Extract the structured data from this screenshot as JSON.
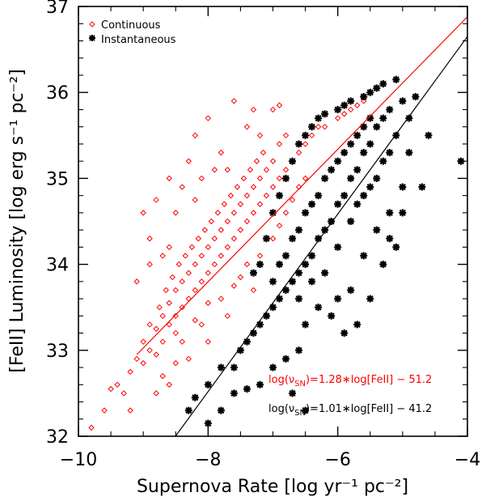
{
  "chart_data": {
    "type": "scatter",
    "title": "",
    "xlabel": "Supernova Rate [log yr⁻¹ pc⁻²]",
    "ylabel": "[FeII] Luminosity [log erg s⁻¹ pc⁻²]",
    "xlim": [
      -10,
      -4
    ],
    "ylim": [
      32,
      37
    ],
    "xticks": [
      -10,
      -8,
      -6,
      -4
    ],
    "xtick_labels": [
      "−10",
      "−8",
      "−6",
      "−4"
    ],
    "yticks": [
      32,
      33,
      34,
      35,
      36,
      37
    ],
    "ytick_labels": [
      "32",
      "33",
      "34",
      "35",
      "36",
      "37"
    ],
    "grid": false,
    "legend_position": "top-left",
    "series": [
      {
        "name": "Continuous",
        "marker": "diamond",
        "color": "#ff0000",
        "fit": {
          "x": [
            -9.1,
            -4.0
          ],
          "y": [
            32.95,
            36.88
          ]
        },
        "equation_prefix": "log(ν",
        "equation_sub": "SN",
        "equation_suffix": ")=1.28∗log[FeII] − 51.2",
        "points": [
          [
            -9.8,
            32.1
          ],
          [
            -9.6,
            32.3
          ],
          [
            -9.5,
            32.55
          ],
          [
            -9.3,
            32.5
          ],
          [
            -9.2,
            32.75
          ],
          [
            -9.1,
            32.9
          ],
          [
            -9.0,
            32.85
          ],
          [
            -9.0,
            33.1
          ],
          [
            -8.9,
            33.0
          ],
          [
            -8.9,
            33.3
          ],
          [
            -8.8,
            32.95
          ],
          [
            -8.8,
            33.25
          ],
          [
            -8.75,
            33.5
          ],
          [
            -8.7,
            33.1
          ],
          [
            -8.7,
            33.4
          ],
          [
            -8.65,
            33.7
          ],
          [
            -8.6,
            33.3
          ],
          [
            -8.6,
            33.55
          ],
          [
            -8.55,
            33.85
          ],
          [
            -8.5,
            33.4
          ],
          [
            -8.5,
            33.7
          ],
          [
            -8.45,
            34.0
          ],
          [
            -8.4,
            33.5
          ],
          [
            -8.4,
            33.8
          ],
          [
            -8.35,
            34.1
          ],
          [
            -8.3,
            33.6
          ],
          [
            -8.3,
            33.9
          ],
          [
            -8.25,
            34.2
          ],
          [
            -8.2,
            33.7
          ],
          [
            -8.2,
            34.0
          ],
          [
            -8.15,
            34.3
          ],
          [
            -8.1,
            33.8
          ],
          [
            -8.1,
            34.1
          ],
          [
            -8.05,
            34.4
          ],
          [
            -8.0,
            33.9
          ],
          [
            -8.0,
            34.2
          ],
          [
            -7.95,
            34.5
          ],
          [
            -7.9,
            34.0
          ],
          [
            -7.9,
            34.3
          ],
          [
            -7.85,
            34.6
          ],
          [
            -7.8,
            34.1
          ],
          [
            -7.8,
            34.4
          ],
          [
            -7.75,
            34.7
          ],
          [
            -7.7,
            34.2
          ],
          [
            -7.7,
            34.5
          ],
          [
            -7.65,
            34.8
          ],
          [
            -7.6,
            34.3
          ],
          [
            -7.6,
            34.6
          ],
          [
            -7.55,
            34.9
          ],
          [
            -7.5,
            34.4
          ],
          [
            -7.5,
            34.7
          ],
          [
            -7.45,
            35.0
          ],
          [
            -7.4,
            34.5
          ],
          [
            -7.4,
            34.8
          ],
          [
            -7.35,
            35.1
          ],
          [
            -7.3,
            34.6
          ],
          [
            -7.3,
            34.9
          ],
          [
            -7.25,
            35.2
          ],
          [
            -7.2,
            34.7
          ],
          [
            -7.2,
            35.0
          ],
          [
            -7.15,
            35.3
          ],
          [
            -7.1,
            34.8
          ],
          [
            -7.1,
            35.1
          ],
          [
            -7.0,
            34.9
          ],
          [
            -7.0,
            35.2
          ],
          [
            -6.9,
            35.0
          ],
          [
            -6.9,
            35.4
          ],
          [
            -6.8,
            35.1
          ],
          [
            -6.8,
            35.5
          ],
          [
            -6.7,
            35.2
          ],
          [
            -6.6,
            35.3
          ],
          [
            -6.5,
            35.4
          ],
          [
            -6.4,
            35.5
          ],
          [
            -6.3,
            35.6
          ],
          [
            -6.2,
            35.6
          ],
          [
            -6.0,
            35.7
          ],
          [
            -5.9,
            35.75
          ],
          [
            -5.8,
            35.8
          ],
          [
            -5.7,
            35.85
          ],
          [
            -5.6,
            35.9
          ],
          [
            -8.2,
            35.5
          ],
          [
            -8.0,
            35.7
          ],
          [
            -7.8,
            35.3
          ],
          [
            -7.6,
            35.9
          ],
          [
            -7.4,
            35.6
          ],
          [
            -7.3,
            35.8
          ],
          [
            -7.0,
            35.8
          ],
          [
            -6.9,
            35.85
          ],
          [
            -7.2,
            35.5
          ],
          [
            -7.7,
            35.1
          ],
          [
            -8.6,
            35.0
          ],
          [
            -8.8,
            34.75
          ],
          [
            -8.5,
            34.6
          ],
          [
            -9.0,
            34.6
          ],
          [
            -8.9,
            34.3
          ],
          [
            -8.4,
            34.9
          ],
          [
            -8.3,
            35.2
          ],
          [
            -8.1,
            35.0
          ],
          [
            -7.9,
            35.1
          ],
          [
            -8.2,
            34.75
          ],
          [
            -8.9,
            34.0
          ],
          [
            -9.1,
            33.8
          ],
          [
            -8.7,
            34.1
          ],
          [
            -8.6,
            34.2
          ],
          [
            -8.5,
            33.2
          ],
          [
            -8.4,
            33.1
          ],
          [
            -8.2,
            33.35
          ],
          [
            -8.1,
            33.3
          ],
          [
            -8.0,
            33.55
          ],
          [
            -7.8,
            33.6
          ],
          [
            -7.6,
            33.75
          ],
          [
            -7.5,
            33.85
          ],
          [
            -7.4,
            34.0
          ],
          [
            -7.2,
            34.1
          ],
          [
            -7.0,
            34.3
          ],
          [
            -6.9,
            34.45
          ],
          [
            -6.8,
            34.6
          ],
          [
            -6.7,
            34.75
          ],
          [
            -6.6,
            34.9
          ],
          [
            -6.5,
            35.0
          ],
          [
            -8.7,
            32.7
          ],
          [
            -8.5,
            32.85
          ],
          [
            -8.3,
            32.9
          ],
          [
            -8.6,
            32.6
          ],
          [
            -9.4,
            32.6
          ],
          [
            -9.2,
            32.3
          ],
          [
            -8.8,
            32.5
          ],
          [
            -8.0,
            33.1
          ],
          [
            -7.7,
            33.4
          ],
          [
            -7.3,
            33.7
          ]
        ]
      },
      {
        "name": "Instantaneous",
        "marker": "asterisk",
        "color": "#000000",
        "fit": {
          "x": [
            -8.6,
            -4.0
          ],
          "y": [
            31.9,
            36.65
          ]
        },
        "equation_prefix": "log(ν",
        "equation_sub": "SN",
        "equation_suffix": ")=1.01∗log[FeII] − 41.2",
        "points": [
          [
            -8.3,
            32.3
          ],
          [
            -8.2,
            32.45
          ],
          [
            -8.0,
            32.6
          ],
          [
            -7.8,
            32.8
          ],
          [
            -7.6,
            32.8
          ],
          [
            -7.5,
            33.0
          ],
          [
            -7.4,
            33.1
          ],
          [
            -7.3,
            33.2
          ],
          [
            -7.2,
            33.3
          ],
          [
            -7.1,
            33.4
          ],
          [
            -7.0,
            33.5
          ],
          [
            -7.0,
            33.8
          ],
          [
            -6.9,
            33.6
          ],
          [
            -6.9,
            34.0
          ],
          [
            -6.8,
            33.7
          ],
          [
            -6.8,
            34.1
          ],
          [
            -6.7,
            33.8
          ],
          [
            -6.7,
            34.3
          ],
          [
            -6.6,
            33.9
          ],
          [
            -6.6,
            34.4
          ],
          [
            -6.5,
            34.0
          ],
          [
            -6.5,
            34.6
          ],
          [
            -6.4,
            34.1
          ],
          [
            -6.4,
            34.7
          ],
          [
            -6.3,
            34.3
          ],
          [
            -6.3,
            34.8
          ],
          [
            -6.2,
            34.4
          ],
          [
            -6.2,
            35.0
          ],
          [
            -6.1,
            34.5
          ],
          [
            -6.1,
            35.1
          ],
          [
            -6.0,
            34.7
          ],
          [
            -6.0,
            35.2
          ],
          [
            -5.9,
            34.8
          ],
          [
            -5.9,
            35.3
          ],
          [
            -5.8,
            35.0
          ],
          [
            -5.8,
            35.4
          ],
          [
            -5.7,
            35.1
          ],
          [
            -5.7,
            35.5
          ],
          [
            -5.6,
            35.3
          ],
          [
            -5.6,
            35.6
          ],
          [
            -5.5,
            35.4
          ],
          [
            -5.5,
            35.7
          ],
          [
            -5.4,
            35.6
          ],
          [
            -5.3,
            35.7
          ],
          [
            -5.2,
            35.8
          ],
          [
            -5.0,
            35.9
          ],
          [
            -4.8,
            35.95
          ],
          [
            -4.6,
            35.5
          ],
          [
            -4.1,
            35.2
          ],
          [
            -5.0,
            34.9
          ],
          [
            -5.2,
            34.6
          ],
          [
            -5.4,
            34.4
          ],
          [
            -5.1,
            34.2
          ],
          [
            -5.3,
            34.0
          ],
          [
            -5.5,
            33.6
          ],
          [
            -5.7,
            33.3
          ],
          [
            -5.9,
            33.2
          ],
          [
            -6.1,
            33.4
          ],
          [
            -6.3,
            33.5
          ],
          [
            -6.5,
            33.3
          ],
          [
            -6.6,
            33.0
          ],
          [
            -6.8,
            32.9
          ],
          [
            -7.0,
            32.8
          ],
          [
            -7.2,
            32.6
          ],
          [
            -7.4,
            32.55
          ],
          [
            -7.6,
            32.5
          ],
          [
            -7.8,
            32.3
          ],
          [
            -8.0,
            32.15
          ],
          [
            -6.7,
            32.5
          ],
          [
            -6.5,
            32.3
          ],
          [
            -7.1,
            34.3
          ],
          [
            -7.2,
            34.0
          ],
          [
            -7.3,
            33.9
          ],
          [
            -7.0,
            34.6
          ],
          [
            -6.9,
            34.8
          ],
          [
            -6.8,
            35.0
          ],
          [
            -6.7,
            35.2
          ],
          [
            -6.6,
            35.4
          ],
          [
            -6.5,
            35.5
          ],
          [
            -6.4,
            35.6
          ],
          [
            -6.3,
            35.7
          ],
          [
            -6.2,
            35.75
          ],
          [
            -6.0,
            35.8
          ],
          [
            -5.9,
            35.85
          ],
          [
            -5.8,
            35.9
          ],
          [
            -5.6,
            35.95
          ],
          [
            -5.4,
            36.05
          ],
          [
            -5.3,
            36.1
          ],
          [
            -5.1,
            36.15
          ],
          [
            -5.5,
            36.0
          ],
          [
            -4.9,
            35.3
          ],
          [
            -4.7,
            34.9
          ],
          [
            -5.0,
            34.6
          ],
          [
            -5.2,
            34.3
          ],
          [
            -5.6,
            34.1
          ],
          [
            -5.8,
            33.7
          ],
          [
            -6.0,
            33.6
          ],
          [
            -6.2,
            33.9
          ],
          [
            -6.4,
            33.8
          ],
          [
            -6.6,
            33.6
          ],
          [
            -5.7,
            34.7
          ],
          [
            -5.5,
            34.9
          ],
          [
            -5.3,
            35.2
          ],
          [
            -5.1,
            35.5
          ],
          [
            -4.9,
            35.7
          ],
          [
            -6.0,
            34.2
          ],
          [
            -5.8,
            34.5
          ],
          [
            -5.6,
            34.8
          ],
          [
            -5.4,
            35.0
          ],
          [
            -5.2,
            35.3
          ]
        ]
      }
    ]
  }
}
